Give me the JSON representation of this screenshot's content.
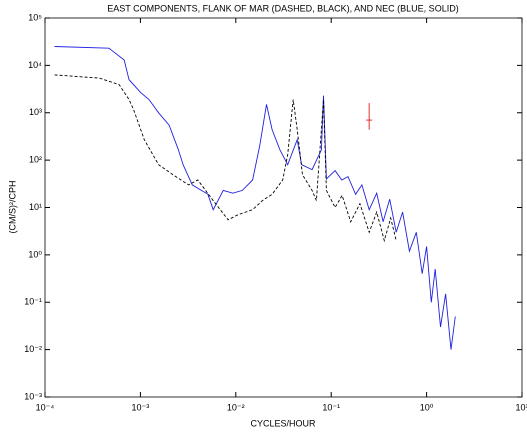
{
  "chart_data": {
    "type": "line",
    "title": "EAST COMPONENTS, FLANK OF MAR (DASHED, BLACK), AND NEC (BLUE, SOLID)",
    "xlabel": "CYCLES/HOUR",
    "ylabel": "(CM/S)²/CPH",
    "xscale": "log",
    "yscale": "log",
    "xlim": [
      0.0001,
      10
    ],
    "ylim": [
      0.001,
      100000
    ],
    "xticks": [
      {
        "value": 0.0001,
        "label": "10⁻⁴"
      },
      {
        "value": 0.001,
        "label": "10⁻³"
      },
      {
        "value": 0.01,
        "label": "10⁻²"
      },
      {
        "value": 0.1,
        "label": "10⁻¹"
      },
      {
        "value": 1,
        "label": "10⁰"
      },
      {
        "value": 10,
        "label": "10¹"
      }
    ],
    "yticks": [
      {
        "value": 0.001,
        "label": "10⁻³"
      },
      {
        "value": 0.01,
        "label": "10⁻²"
      },
      {
        "value": 0.1,
        "label": "10⁻¹"
      },
      {
        "value": 1,
        "label": "10⁰"
      },
      {
        "value": 10,
        "label": "10¹"
      },
      {
        "value": 100,
        "label": "10²"
      },
      {
        "value": 1000,
        "label": "10³"
      },
      {
        "value": 10000,
        "label": "10⁴"
      },
      {
        "value": 100000,
        "label": "10⁵"
      }
    ],
    "series": [
      {
        "color": "#2020e0",
        "dash": false,
        "x": [
          0.000126,
          0.000468,
          0.000676,
          0.000759,
          0.001,
          0.00123,
          0.00155,
          0.002,
          0.0025,
          0.0028,
          0.0035,
          0.0051,
          0.0058,
          0.0074,
          0.0093,
          0.0117,
          0.015,
          0.0178,
          0.021,
          0.024,
          0.029,
          0.035,
          0.044,
          0.049,
          0.063,
          0.079,
          0.083,
          0.089,
          0.11,
          0.129,
          0.15,
          0.18,
          0.21,
          0.25,
          0.3,
          0.35,
          0.41,
          0.48,
          0.56,
          0.66,
          0.78,
          0.9,
          1,
          1.12,
          1.23,
          1.4,
          1.58,
          1.8,
          2.0
        ],
        "values": [
          25000,
          23000,
          13000,
          5000,
          2700,
          1900,
          1000,
          550,
          165,
          80,
          30,
          19,
          9,
          23,
          20,
          23,
          38,
          200,
          1500,
          440,
          165,
          80,
          270,
          80,
          63,
          165,
          2300,
          40,
          60,
          38,
          45,
          19,
          30,
          9,
          20,
          5,
          15,
          3,
          8,
          1.2,
          3,
          0.4,
          1.5,
          0.1,
          0.5,
          0.03,
          0.15,
          0.01,
          0.05
        ]
      },
      {
        "color": "#000000",
        "dash": true,
        "x": [
          0.000126,
          0.000372,
          0.0006,
          0.00076,
          0.00085,
          0.0011,
          0.00155,
          0.0022,
          0.0032,
          0.004,
          0.0058,
          0.0083,
          0.0105,
          0.015,
          0.019,
          0.024,
          0.031,
          0.035,
          0.04,
          0.044,
          0.05,
          0.063,
          0.07,
          0.083,
          0.089,
          0.11,
          0.13,
          0.16,
          0.2,
          0.25,
          0.3,
          0.36,
          0.42,
          0.48
        ],
        "values": [
          6300,
          5400,
          3900,
          1900,
          1150,
          270,
          80,
          49,
          30,
          38,
          14,
          5.5,
          7,
          9,
          14,
          19,
          38,
          130,
          1900,
          440,
          49,
          23,
          14,
          1900,
          23,
          10,
          18,
          5,
          12,
          3,
          8,
          2,
          6,
          2
        ]
      }
    ],
    "error_bar": {
      "x": 0.25,
      "y": 700,
      "lower": 440,
      "upper": 1600,
      "color": "#e03030"
    }
  }
}
